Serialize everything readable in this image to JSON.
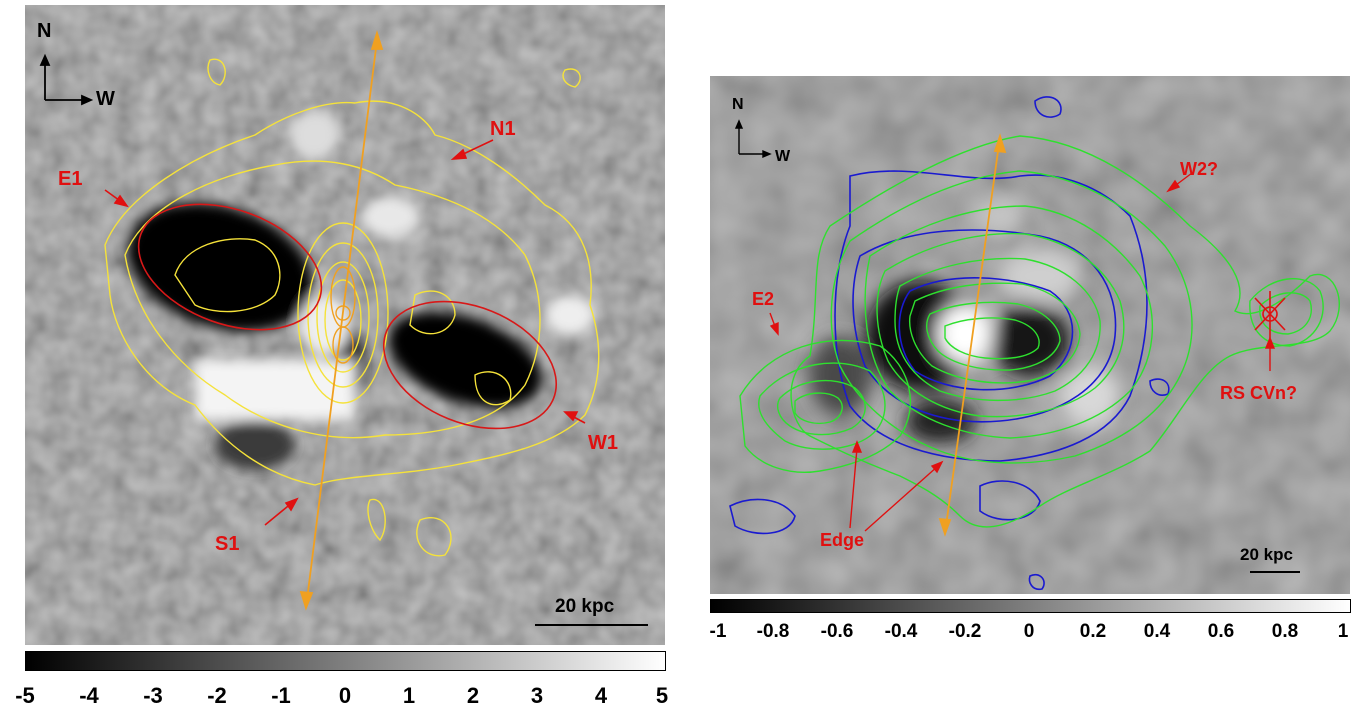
{
  "left_panel": {
    "compass": {
      "north": "N",
      "west": "W"
    },
    "labels": {
      "n1": "N1",
      "e1": "E1",
      "w1": "W1",
      "s1": "S1"
    },
    "scale_bar": "20 kpc",
    "colorbar_ticks": [
      "-5",
      "-4",
      "-3",
      "-2",
      "-1",
      "0",
      "1",
      "2",
      "3",
      "4",
      "5"
    ],
    "colors": {
      "contour": "#f5e23a",
      "ellipse": "#d81818",
      "axis_arrow": "#f0a020",
      "label": "#e01010"
    }
  },
  "right_panel": {
    "compass": {
      "north": "N",
      "west": "W"
    },
    "labels": {
      "w2": "W2?",
      "e2": "E2",
      "rscvn": "RS CVn?",
      "edge": "Edge"
    },
    "scale_bar": "20 kpc",
    "colorbar_ticks": [
      "-1",
      "-0.8",
      "-0.6",
      "-0.4",
      "-0.2",
      "0",
      "0.2",
      "0.4",
      "0.6",
      "0.8",
      "1"
    ],
    "colors": {
      "green_contour": "#2ee02e",
      "blue_contour": "#1a1ad0",
      "axis_arrow": "#f0a020",
      "label": "#e01010"
    }
  }
}
